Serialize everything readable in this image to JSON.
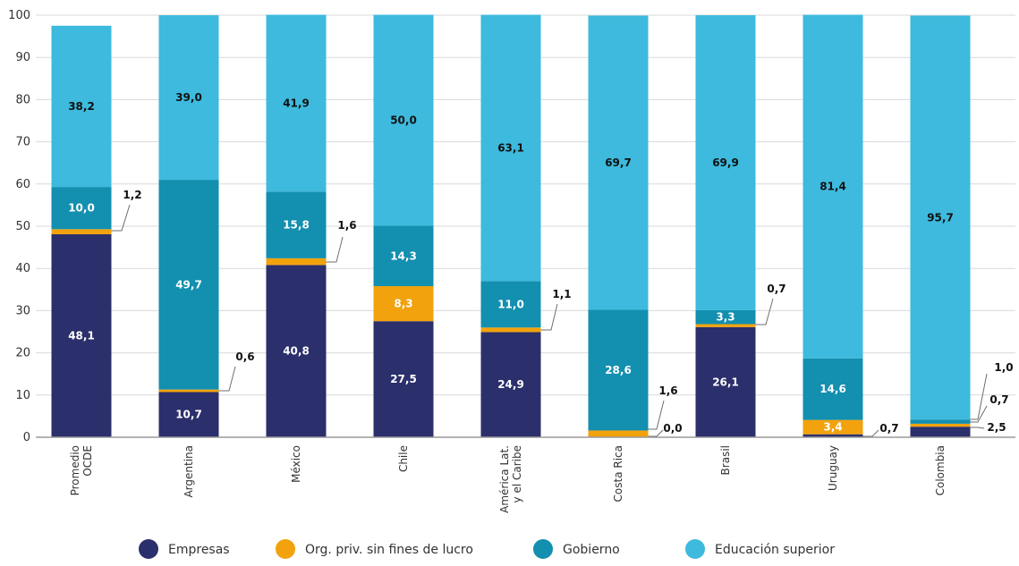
{
  "colors": {
    "empresas": "#2b2f6b",
    "orgpriv": "#f2a20c",
    "gobierno": "#138fb0",
    "educacion": "#3dbadd",
    "grid": "#d9d9d9",
    "axis": "#9a9a9a",
    "leader": "#6e6e6e"
  },
  "chart_data": {
    "type": "bar",
    "stacked": true,
    "ylim": [
      0,
      100
    ],
    "yticks": [
      0,
      10,
      20,
      30,
      40,
      50,
      60,
      70,
      80,
      90,
      100
    ],
    "grid": true,
    "legend_position": "bottom",
    "categories": [
      [
        "Promedio",
        "OCDE"
      ],
      [
        "Argentina"
      ],
      [
        "México"
      ],
      [
        "Chile"
      ],
      [
        "América Lat.",
        "y el Caribe"
      ],
      [
        "Costa Rica"
      ],
      [
        "Brasil"
      ],
      [
        "Uruguay"
      ],
      [
        "Colombia"
      ]
    ],
    "series": [
      {
        "name": "Empresas",
        "color_key": "empresas",
        "values": [
          48.1,
          10.7,
          40.8,
          27.5,
          24.9,
          0.0,
          26.1,
          0.7,
          2.5
        ]
      },
      {
        "name": "Org. priv. sin fines de lucro",
        "color_key": "orgpriv",
        "values": [
          1.2,
          0.6,
          1.6,
          8.3,
          1.1,
          1.6,
          0.7,
          3.4,
          0.7
        ]
      },
      {
        "name": "Gobierno",
        "color_key": "gobierno",
        "values": [
          10.0,
          49.7,
          15.8,
          14.3,
          11.0,
          28.6,
          3.3,
          14.6,
          1.0
        ]
      },
      {
        "name": "Educación superior",
        "color_key": "educacion",
        "values": [
          38.2,
          39.0,
          41.9,
          50.0,
          63.1,
          69.7,
          69.9,
          81.4,
          95.7
        ]
      }
    ],
    "segment_labels": [
      [
        "48,1",
        "10,7",
        "40,8",
        "27,5",
        "24,9",
        "0,0",
        "26,1",
        "0,7",
        "2,5"
      ],
      [
        "1,2",
        "0,6",
        "1,6",
        "8,3",
        "1,1",
        "1,6",
        "0,7",
        "3,4",
        "0,7"
      ],
      [
        "10,0",
        "49,7",
        "15,8",
        "14,3",
        "11,0",
        "28,6",
        "3,3",
        "14,6",
        "1,0"
      ],
      [
        "38,2",
        "39,0",
        "41,9",
        "50,0",
        "63,1",
        "69,7",
        "69,9",
        "81,4",
        "95,7"
      ]
    ],
    "legend": [
      {
        "label": "Empresas",
        "color_key": "empresas"
      },
      {
        "label": "Org. priv. sin fines de lucro",
        "color_key": "orgpriv"
      },
      {
        "label": "Gobierno",
        "color_key": "gobierno"
      },
      {
        "label": "Educación superior",
        "color_key": "educacion"
      }
    ]
  }
}
